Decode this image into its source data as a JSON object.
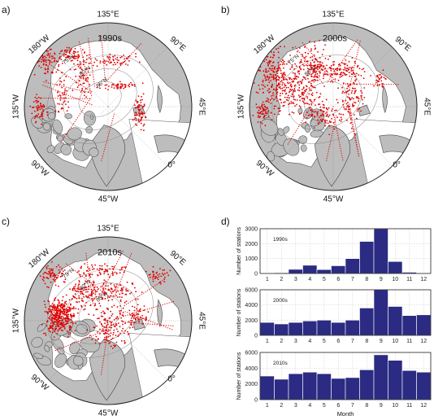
{
  "panels": [
    {
      "letter": "a)",
      "decade": "1990s",
      "lon_labels": [
        "135°E",
        "90°E",
        "45°E",
        "0°",
        "45°W",
        "90°W",
        "135°W",
        "180°W"
      ],
      "lat_labels": [
        "75°N",
        "80°N",
        "85°N"
      ]
    },
    {
      "letter": "b)",
      "decade": "2000s",
      "lon_labels": [
        "135°E",
        "90°E",
        "45°E",
        "0°",
        "45°W",
        "90°W",
        "135°W",
        "180°W"
      ],
      "lat_labels": [
        "75°N",
        "80°N"
      ]
    },
    {
      "letter": "c)",
      "decade": "2010s",
      "lon_labels": [
        "135°E",
        "90°E",
        "45°E",
        "0°",
        "45°W",
        "90°W",
        "135°W",
        "180°W"
      ],
      "lat_labels": [
        "75°N",
        "80°N",
        "85°N"
      ]
    }
  ],
  "histogram_letter": "d)",
  "colors": {
    "land": "#bdbdbd",
    "ocean": "#ffffff",
    "stations": "#e00000",
    "bars": "#2b2b83",
    "grid": "#c8c8c8"
  },
  "chart_data": [
    {
      "type": "bar",
      "title": "1990s",
      "categories": [
        "1",
        "2",
        "3",
        "4",
        "5",
        "6",
        "7",
        "8",
        "9",
        "10",
        "11",
        "12"
      ],
      "values": [
        20,
        50,
        280,
        550,
        260,
        520,
        1000,
        2150,
        3000,
        800,
        80,
        30
      ],
      "ylabel": "Number of stations",
      "ylim": [
        0,
        3000
      ],
      "yticks": [
        0,
        1000,
        2000,
        3000
      ],
      "grid": true
    },
    {
      "type": "bar",
      "title": "2000s",
      "categories": [
        "1",
        "2",
        "3",
        "4",
        "5",
        "6",
        "7",
        "8",
        "9",
        "10",
        "11",
        "12"
      ],
      "values": [
        1700,
        1500,
        1700,
        1900,
        2000,
        1700,
        2000,
        3600,
        6000,
        3800,
        2600,
        2700
      ],
      "ylabel": "Number of stations",
      "ylim": [
        0,
        6000
      ],
      "yticks": [
        0,
        2000,
        4000,
        6000
      ],
      "grid": true
    },
    {
      "type": "bar",
      "title": "2010s",
      "categories": [
        "1",
        "2",
        "3",
        "4",
        "5",
        "6",
        "7",
        "8",
        "9",
        "10",
        "11",
        "12"
      ],
      "values": [
        3000,
        2600,
        3300,
        3500,
        3300,
        2700,
        2800,
        3800,
        5700,
        5000,
        3700,
        3500
      ],
      "ylabel": "Number of stations",
      "xlabel": "Month",
      "ylim": [
        0,
        6000
      ],
      "yticks": [
        0,
        2000,
        4000,
        6000
      ],
      "grid": true
    }
  ]
}
